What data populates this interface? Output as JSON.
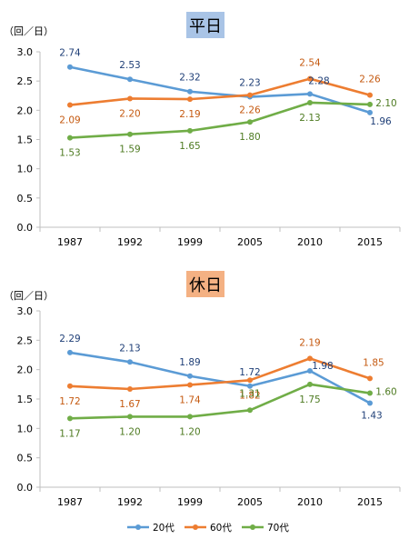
{
  "chart_data": [
    {
      "type": "line",
      "title": "平日",
      "unit_label": "（回／日）",
      "categories": [
        "1987",
        "1992",
        "1999",
        "2005",
        "2010",
        "2015"
      ],
      "ylim": [
        0,
        3.0
      ],
      "yticks": [
        0.0,
        0.5,
        1.0,
        1.5,
        2.0,
        2.5,
        3.0
      ],
      "ytick_labels": [
        "0.0",
        "0.5",
        "1.0",
        "1.5",
        "2.0",
        "2.5",
        "3.0"
      ],
      "grid": false,
      "series": [
        {
          "name": "20代",
          "values": [
            2.74,
            2.53,
            2.32,
            2.23,
            2.28,
            1.96
          ],
          "labels": [
            "2.74",
            "2.53",
            "2.32",
            "2.23",
            "2.28",
            "1.96"
          ]
        },
        {
          "name": "60代",
          "values": [
            2.09,
            2.2,
            2.19,
            2.26,
            2.54,
            2.26
          ],
          "labels": [
            "2.09",
            "2.20",
            "2.19",
            "2.26",
            "2.54",
            "2.26"
          ]
        },
        {
          "name": "70代",
          "values": [
            1.53,
            1.59,
            1.65,
            1.8,
            2.13,
            2.1
          ],
          "labels": [
            "1.53",
            "1.59",
            "1.65",
            "1.80",
            "2.13",
            "2.10"
          ]
        }
      ]
    },
    {
      "type": "line",
      "title": "休日",
      "unit_label": "（回／日）",
      "categories": [
        "1987",
        "1992",
        "1999",
        "2005",
        "2010",
        "2015"
      ],
      "ylim": [
        0,
        3.0
      ],
      "yticks": [
        0.0,
        0.5,
        1.0,
        1.5,
        2.0,
        2.5,
        3.0
      ],
      "ytick_labels": [
        "0.0",
        "0.5",
        "1.0",
        "1.5",
        "2.0",
        "2.5",
        "3.0"
      ],
      "grid": false,
      "series": [
        {
          "name": "20代",
          "values": [
            2.29,
            2.13,
            1.89,
            1.72,
            1.98,
            1.43
          ],
          "labels": [
            "2.29",
            "2.13",
            "1.89",
            "1.72",
            "1.98",
            "1.43"
          ]
        },
        {
          "name": "60代",
          "values": [
            1.72,
            1.67,
            1.74,
            1.82,
            2.19,
            1.85
          ],
          "labels": [
            "1.72",
            "1.67",
            "1.74",
            "1.82",
            "2.19",
            "1.85"
          ]
        },
        {
          "name": "70代",
          "values": [
            1.17,
            1.2,
            1.2,
            1.31,
            1.75,
            1.6
          ],
          "labels": [
            "1.17",
            "1.20",
            "1.20",
            "1.31",
            "1.75",
            "1.60"
          ]
        }
      ]
    }
  ],
  "legend": {
    "position": "bottom",
    "items": [
      "20代",
      "60代",
      "70代"
    ]
  },
  "colors": {
    "series": [
      "#5b9bd5",
      "#ed7d31",
      "#70ad47"
    ],
    "label_text": [
      "#1f3f77",
      "#c55a11",
      "#4e7b22"
    ],
    "title_boxes": [
      "#a9c4e6",
      "#f4b183"
    ]
  }
}
